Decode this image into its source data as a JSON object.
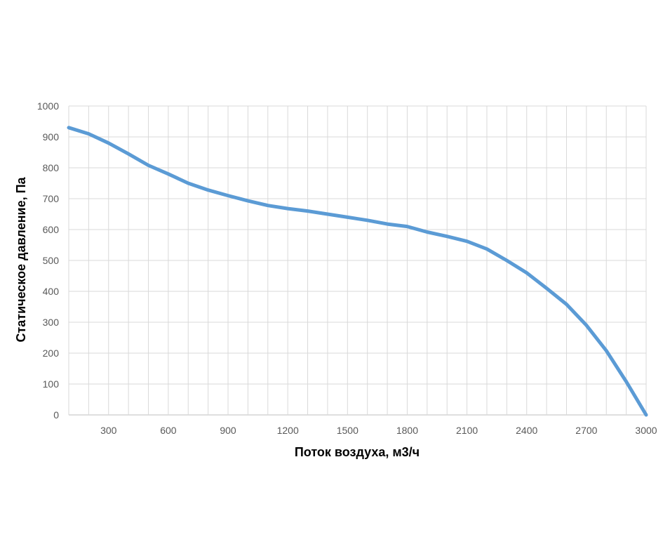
{
  "chart_data": {
    "type": "line",
    "title": "",
    "xlabel": "Поток воздуха, м3/ч",
    "ylabel": "Статическое давление, Па",
    "xlim": [
      100,
      3000
    ],
    "ylim": [
      0,
      1000
    ],
    "x_ticks": [
      300,
      600,
      900,
      1200,
      1500,
      1800,
      2100,
      2400,
      2700,
      3000
    ],
    "y_ticks": [
      0,
      100,
      200,
      300,
      400,
      500,
      600,
      700,
      800,
      900,
      1000
    ],
    "x_tick_labels": [
      "300",
      "600",
      "900",
      "1200",
      "1500",
      "1800",
      "2100",
      "2400",
      "2700",
      "3000"
    ],
    "y_tick_labels": [
      "0",
      "100",
      "200",
      "300",
      "400",
      "500",
      "600",
      "700",
      "800",
      "900",
      "1000"
    ],
    "x_grid_step": 100,
    "grid": true,
    "legend": "none",
    "series": [
      {
        "color": "#5b9bd5",
        "x": [
          100,
          200,
          300,
          400,
          500,
          600,
          700,
          800,
          900,
          1000,
          1100,
          1200,
          1300,
          1400,
          1500,
          1600,
          1700,
          1800,
          1900,
          2000,
          2100,
          2200,
          2300,
          2400,
          2500,
          2600,
          2700,
          2800,
          2900,
          3000
        ],
        "y": [
          930,
          910,
          880,
          845,
          808,
          780,
          750,
          728,
          710,
          693,
          678,
          668,
          660,
          650,
          640,
          630,
          618,
          610,
          592,
          578,
          562,
          537,
          500,
          460,
          410,
          358,
          290,
          208,
          108,
          0
        ]
      }
    ]
  }
}
